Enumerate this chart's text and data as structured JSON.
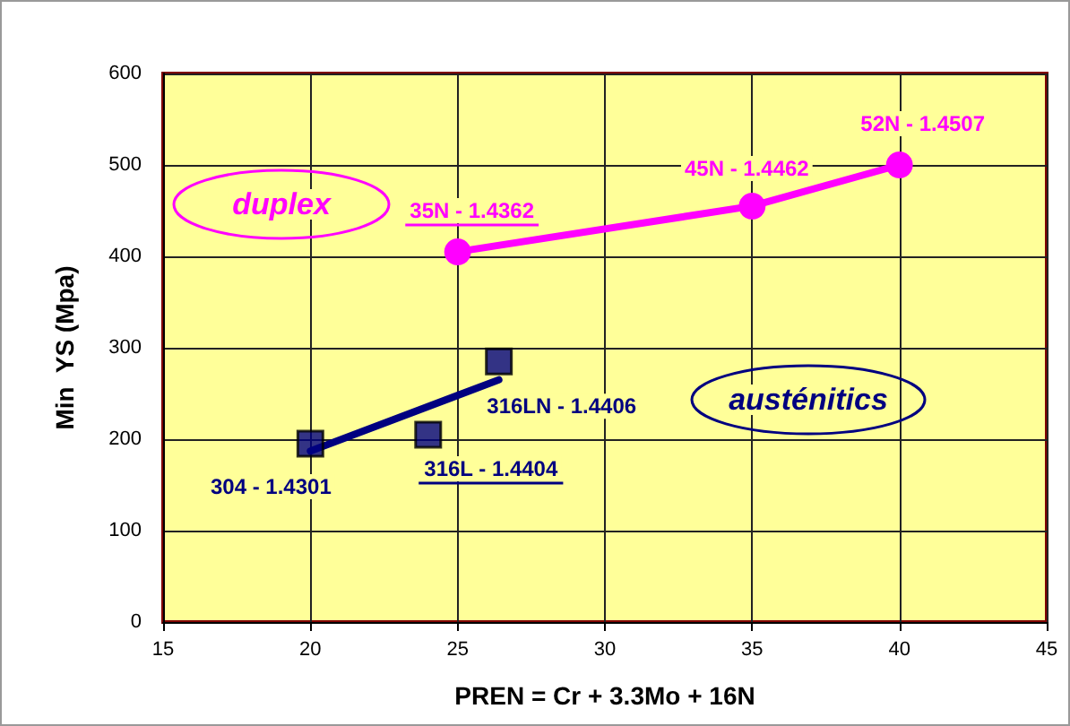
{
  "chart_data": {
    "type": "scatter",
    "xlabel": "PREN = Cr + 3.3Mo + 16N",
    "ylabel": "Min  YS (Mpa)",
    "xlim": [
      15,
      45
    ],
    "xticks": [
      15,
      20,
      25,
      30,
      35,
      40,
      45
    ],
    "ylim": [
      0,
      600
    ],
    "yticks": [
      0,
      100,
      200,
      300,
      400,
      500,
      600
    ],
    "grid": true,
    "series": [
      {
        "color": "#000080",
        "marker": "square",
        "x": [
          20,
          24,
          26.4
        ],
        "values": [
          195,
          205,
          285
        ]
      },
      {
        "type": "line",
        "color": "#000080",
        "marker": "none",
        "x": [
          20,
          26.4
        ],
        "values": [
          187,
          265
        ]
      },
      {
        "type": "line",
        "color": "#ff00ff",
        "marker": "circle",
        "x": [
          25,
          35,
          40
        ],
        "values": [
          405,
          455,
          500
        ]
      }
    ],
    "annotations": [
      "duplex",
      "austénitics",
      {
        "text": "304 - 1.4301",
        "x": 20,
        "y": 195
      },
      {
        "text": "316L - 1.4404",
        "x": 24,
        "y": 205
      },
      {
        "text": "316LN - 1.4406",
        "x": 26.4,
        "y": 285
      },
      {
        "text": "35N - 1.4362",
        "x": 25,
        "y": 405
      },
      {
        "text": "45N - 1.4462",
        "x": 35,
        "y": 455
      },
      {
        "text": "52N - 1.4507",
        "x": 40,
        "y": 500
      }
    ]
  }
}
